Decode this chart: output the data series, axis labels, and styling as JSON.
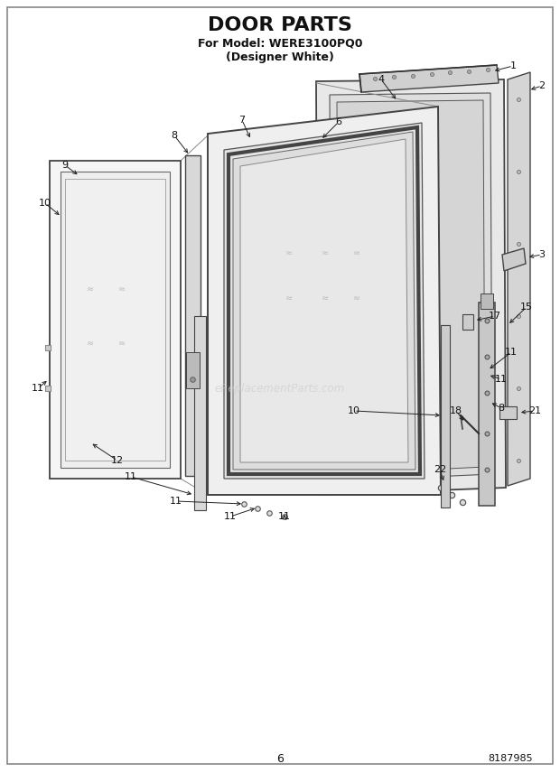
{
  "title": "DOOR PARTS",
  "subtitle1": "For Model: WERE3100PQ0",
  "subtitle2": "(Designer White)",
  "page_number": "6",
  "part_number": "8187985",
  "bg_color": "#ffffff",
  "diagram_color": "#1a1a1a",
  "watermark": "eReplacementParts.com",
  "border_color": "#555555",
  "line_color": "#333333",
  "panel_edge": "#444444",
  "panel_face_light": "#f2f2f2",
  "panel_face_mid": "#e0e0e0",
  "panel_face_dark": "#cccccc",
  "strip_face": "#d8d8d8"
}
